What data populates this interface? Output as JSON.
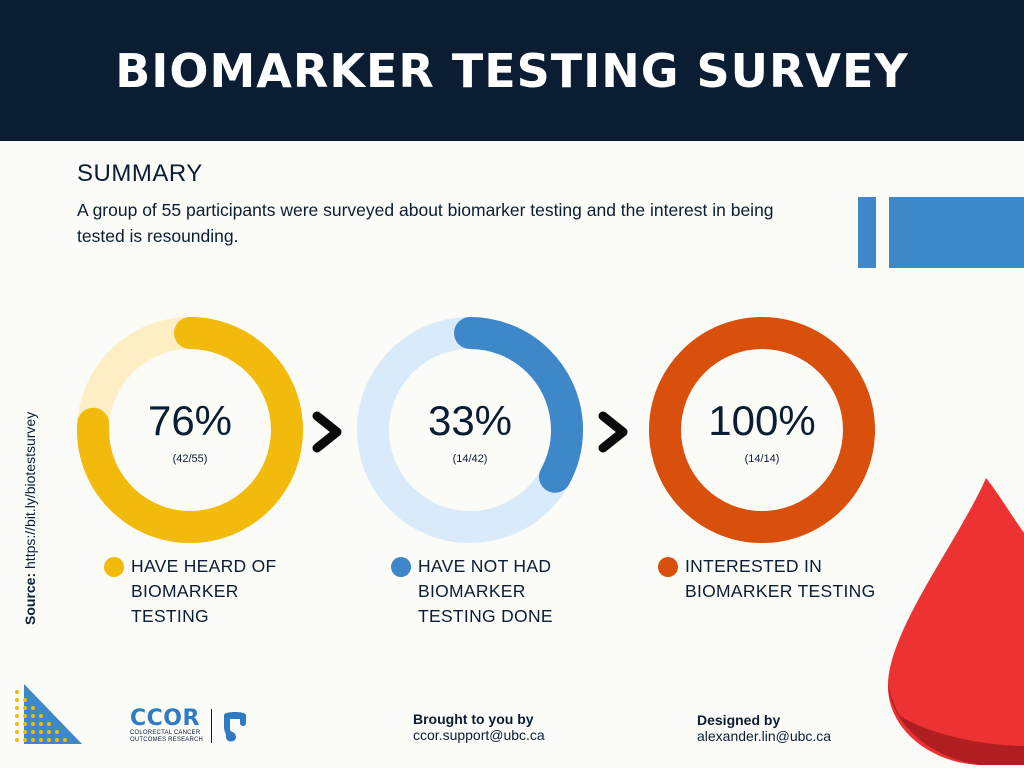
{
  "header": {
    "title": "BIOMARKER TESTING SURVEY"
  },
  "summary": {
    "heading": "SUMMARY",
    "text": "A group of 55 participants were surveyed about biomarker testing and the interest in being tested is resounding."
  },
  "source": {
    "label": "Source:",
    "url": "https://bit.ly/biotestsurvey"
  },
  "stats": [
    {
      "percent_text": "76%",
      "fraction_text": "(42/55)",
      "value": 0.76,
      "legend": [
        "HAVE HEARD OF",
        "BIOMARKER",
        "TESTING"
      ],
      "color": "#f2bb0b",
      "track_color": "#fdeec4"
    },
    {
      "percent_text": "33%",
      "fraction_text": "(14/42)",
      "value": 0.33,
      "legend": [
        "HAVE NOT HAD",
        "BIOMARKER",
        "TESTING DONE"
      ],
      "color": "#3e87c8",
      "track_color": "#d9ebfb"
    },
    {
      "percent_text": "100%",
      "fraction_text": "(14/14)",
      "value": 1.0,
      "legend": [
        "INTERESTED IN",
        "BIOMARKER TESTING"
      ],
      "color": "#d9500c",
      "track_color": "#f6d3bf"
    }
  ],
  "footer": {
    "org_short": "CCOR",
    "org_long_line1": "COLORECTAL CANCER",
    "org_long_line2": "OUTCOMES RESEARCH",
    "brought_by_label": "Brought to you by",
    "brought_by_email": "ccor.support@ubc.ca",
    "designed_by_label": "Designed by",
    "designed_by_email": "alexander.lin@ubc.ca"
  },
  "colors": {
    "navy": "#0b1d33",
    "blue": "#3e87c8",
    "red": "#ec3232"
  }
}
